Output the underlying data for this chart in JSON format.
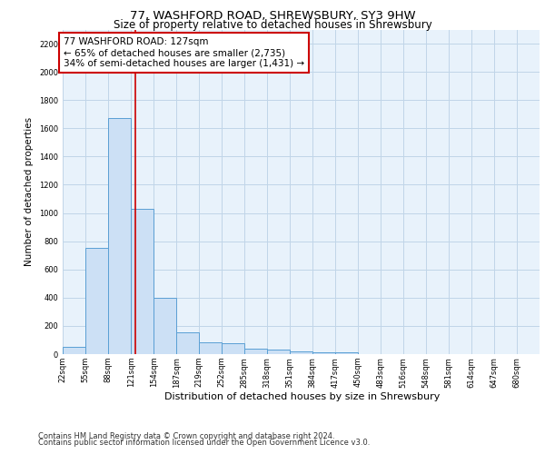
{
  "title_line1": "77, WASHFORD ROAD, SHREWSBURY, SY3 9HW",
  "title_line2": "Size of property relative to detached houses in Shrewsbury",
  "xlabel": "Distribution of detached houses by size in Shrewsbury",
  "ylabel": "Number of detached properties",
  "footer_line1": "Contains HM Land Registry data © Crown copyright and database right 2024.",
  "footer_line2": "Contains public sector information licensed under the Open Government Licence v3.0.",
  "annotation_line1": "77 WASHFORD ROAD: 127sqm",
  "annotation_line2": "← 65% of detached houses are smaller (2,735)",
  "annotation_line3": "34% of semi-detached houses are larger (1,431) →",
  "property_size": 127,
  "bar_edge_color": "#5a9fd4",
  "bar_face_color": "#cce0f5",
  "bins_start": [
    22,
    55,
    88,
    121,
    154,
    187,
    219,
    252,
    285,
    318,
    351,
    384,
    417,
    450,
    483,
    516,
    548,
    581,
    614,
    647
  ],
  "bin_width": 33,
  "bin_labels": [
    "22sqm",
    "55sqm",
    "88sqm",
    "121sqm",
    "154sqm",
    "187sqm",
    "219sqm",
    "252sqm",
    "285sqm",
    "318sqm",
    "351sqm",
    "384sqm",
    "417sqm",
    "450sqm",
    "483sqm",
    "516sqm",
    "548sqm",
    "581sqm",
    "614sqm",
    "647sqm",
    "680sqm"
  ],
  "bar_heights": [
    50,
    750,
    1670,
    1030,
    400,
    155,
    85,
    80,
    40,
    30,
    20,
    10,
    15,
    0,
    0,
    0,
    0,
    0,
    0,
    0
  ],
  "ylim": [
    0,
    2300
  ],
  "yticks": [
    0,
    200,
    400,
    600,
    800,
    1000,
    1200,
    1400,
    1600,
    1800,
    2000,
    2200
  ],
  "vline_x": 127,
  "vline_color": "#cc0000",
  "grid_color": "#c0d5e8",
  "plot_bg_color": "#e8f2fb",
  "annotation_box_color": "#ffffff",
  "annotation_box_edge": "#cc0000",
  "title1_fontsize": 9.5,
  "title2_fontsize": 8.5,
  "ylabel_fontsize": 7.5,
  "xlabel_fontsize": 8,
  "tick_fontsize": 6,
  "annotation_fontsize": 7.5,
  "footer_fontsize": 6
}
